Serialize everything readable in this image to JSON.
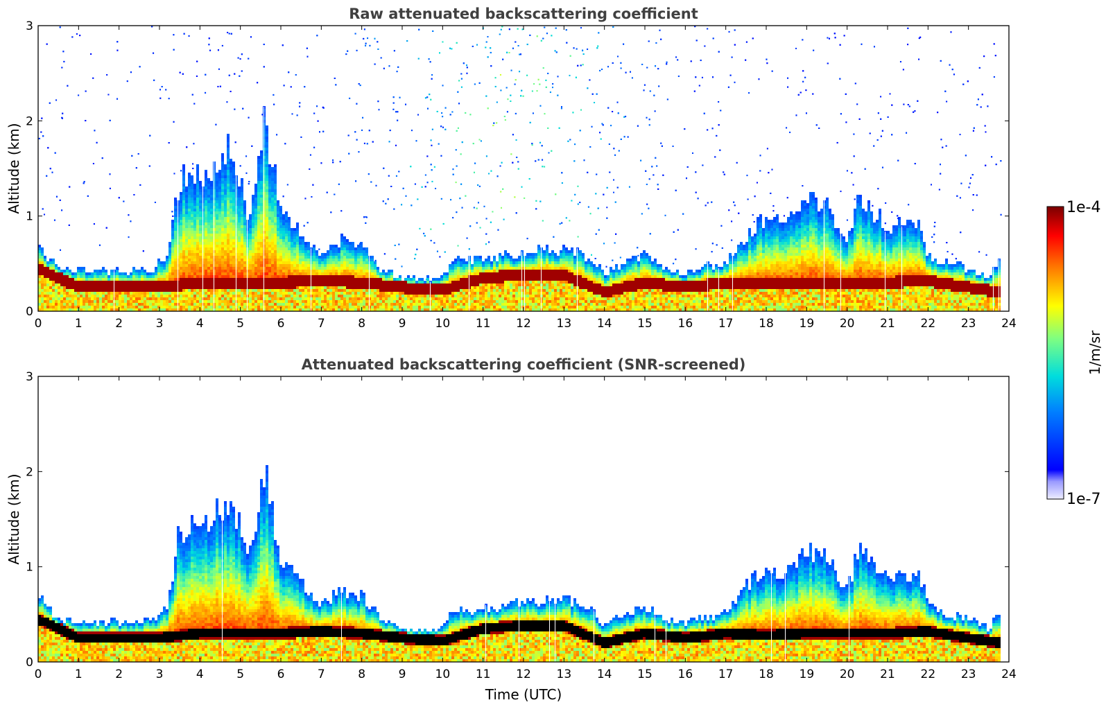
{
  "chart_data": [
    {
      "type": "heatmap",
      "title": "Raw attenuated backscattering coefficient",
      "xlabel": "",
      "ylabel": "Altitude (km)",
      "xlim": [
        0,
        24
      ],
      "ylim": [
        0,
        3
      ],
      "xticks": [
        "0",
        "1",
        "2",
        "3",
        "4",
        "5",
        "6",
        "7",
        "8",
        "9",
        "10",
        "11",
        "12",
        "13",
        "14",
        "15",
        "16",
        "17",
        "18",
        "19",
        "20",
        "21",
        "22",
        "23",
        "24"
      ],
      "yticks": [
        "0",
        "1",
        "2",
        "3"
      ],
      "boundary_layer_top_km": [
        [
          0,
          0.68
        ],
        [
          0.5,
          0.45
        ],
        [
          1,
          0.42
        ],
        [
          2,
          0.42
        ],
        [
          2.8,
          0.43
        ],
        [
          3.2,
          0.6
        ],
        [
          3.5,
          1.4
        ],
        [
          4,
          1.4
        ],
        [
          4.5,
          1.6
        ],
        [
          4.8,
          1.75
        ],
        [
          5.2,
          1.0
        ],
        [
          5.6,
          2.0
        ],
        [
          6,
          1.1
        ],
        [
          6.5,
          0.85
        ],
        [
          7,
          0.6
        ],
        [
          7.5,
          0.75
        ],
        [
          8,
          0.7
        ],
        [
          8.5,
          0.45
        ],
        [
          9,
          0.35
        ],
        [
          9.5,
          0.33
        ],
        [
          10,
          0.35
        ],
        [
          10.3,
          0.55
        ],
        [
          11,
          0.55
        ],
        [
          12,
          0.62
        ],
        [
          13,
          0.65
        ],
        [
          13.5,
          0.6
        ],
        [
          14,
          0.4
        ],
        [
          14.5,
          0.5
        ],
        [
          15,
          0.58
        ],
        [
          15.5,
          0.45
        ],
        [
          16,
          0.4
        ],
        [
          16.5,
          0.48
        ],
        [
          17,
          0.5
        ],
        [
          17.5,
          0.8
        ],
        [
          18,
          1.0
        ],
        [
          18.5,
          0.9
        ],
        [
          19,
          1.2
        ],
        [
          19.5,
          1.1
        ],
        [
          20,
          0.75
        ],
        [
          20.3,
          1.2
        ],
        [
          21,
          0.9
        ],
        [
          21.8,
          0.9
        ],
        [
          22,
          0.6
        ],
        [
          22.5,
          0.5
        ],
        [
          23,
          0.45
        ],
        [
          23.5,
          0.35
        ],
        [
          23.8,
          0.55
        ]
      ],
      "aerosol_layer_km": [
        [
          0,
          0.45
        ],
        [
          1,
          0.25
        ],
        [
          2,
          0.25
        ],
        [
          3,
          0.25
        ],
        [
          4,
          0.3
        ],
        [
          5,
          0.3
        ],
        [
          6,
          0.3
        ],
        [
          7,
          0.32
        ],
        [
          8,
          0.3
        ],
        [
          9,
          0.25
        ],
        [
          10,
          0.22
        ],
        [
          11,
          0.35
        ],
        [
          12,
          0.38
        ],
        [
          13,
          0.38
        ],
        [
          14,
          0.2
        ],
        [
          15,
          0.3
        ],
        [
          16,
          0.25
        ],
        [
          17,
          0.3
        ],
        [
          18,
          0.28
        ],
        [
          19,
          0.3
        ],
        [
          20,
          0.3
        ],
        [
          21,
          0.3
        ],
        [
          22,
          0.32
        ],
        [
          23,
          0.25
        ],
        [
          23.8,
          0.2
        ]
      ],
      "notes_visible": "Noise speckle above boundary layer, densest 9-14 UTC"
    },
    {
      "type": "heatmap",
      "title": "Attenuated backscattering coefficient (SNR-screened)",
      "xlabel": "Time (UTC)",
      "ylabel": "Altitude (km)",
      "xlim": [
        0,
        24
      ],
      "ylim": [
        0,
        3
      ],
      "xticks": [
        "0",
        "1",
        "2",
        "3",
        "4",
        "5",
        "6",
        "7",
        "8",
        "9",
        "10",
        "11",
        "12",
        "13",
        "14",
        "15",
        "16",
        "17",
        "18",
        "19",
        "20",
        "21",
        "22",
        "23",
        "24"
      ],
      "yticks": [
        "0",
        "1",
        "2",
        "3"
      ]
    }
  ],
  "colorbar": {
    "label": "1/m/sr",
    "max_label": "1e-4",
    "min_label": "1e-7",
    "range": [
      1e-07,
      0.0001
    ],
    "scale": "log",
    "colormap": "jet",
    "colors": [
      "#e8e8ff",
      "#0000ff",
      "#0080ff",
      "#00e0e0",
      "#80ff80",
      "#ffff00",
      "#ff8000",
      "#ff0000",
      "#800000"
    ]
  }
}
